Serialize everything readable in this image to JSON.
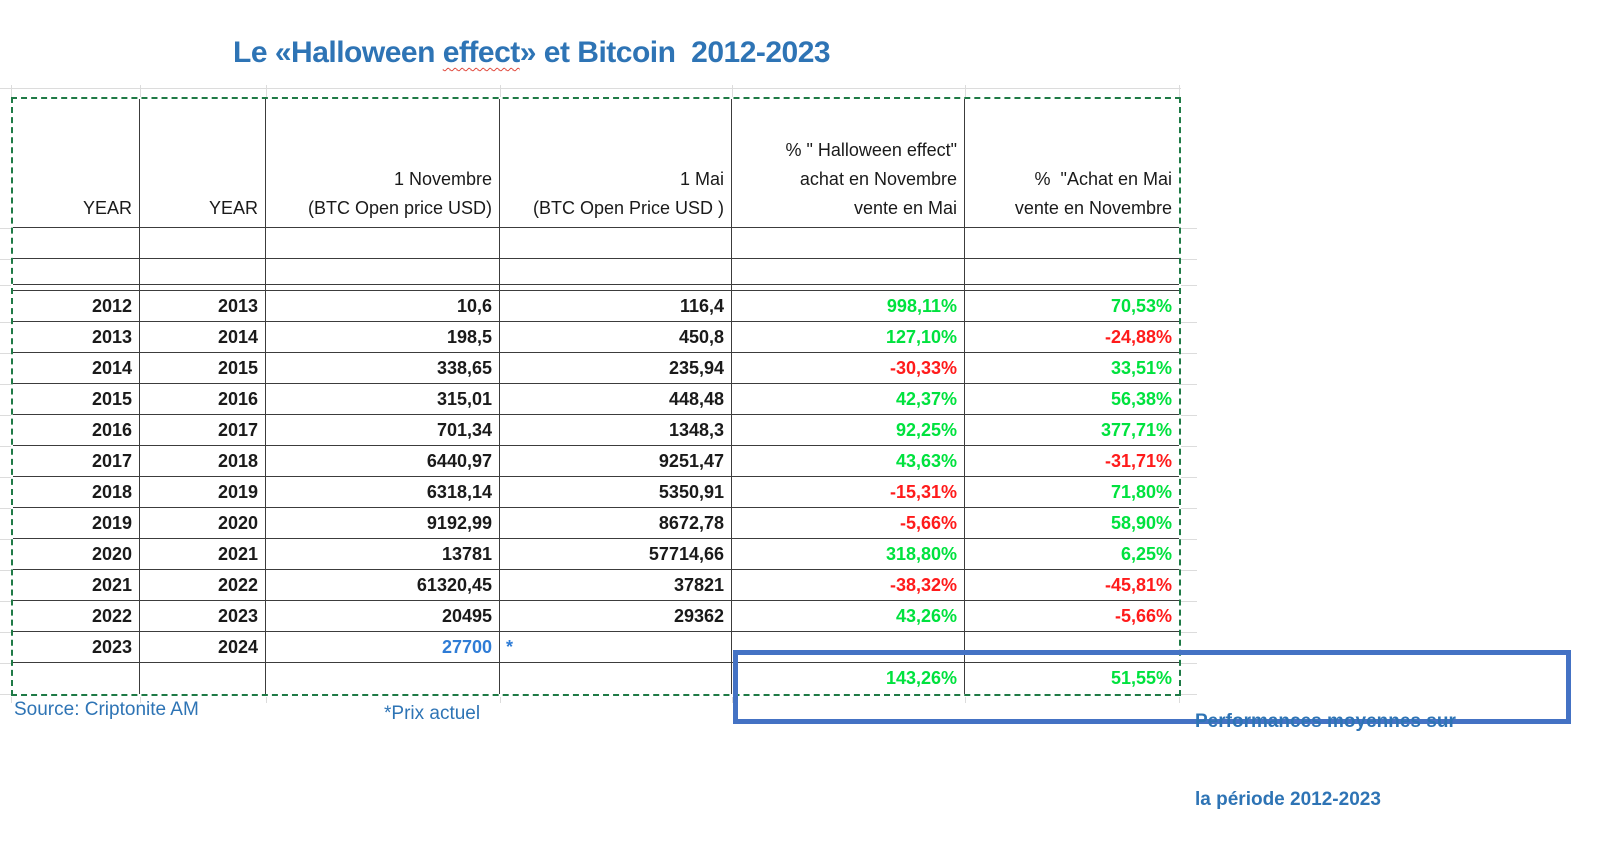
{
  "title": {
    "prefix": "Le «Halloween ",
    "misspelled_word": "effect",
    "suffix": "» et Bitcoin  2012-2023"
  },
  "table": {
    "headers": {
      "year_buy": "YEAR",
      "year_sell": "YEAR",
      "nov_line1": "1 Novembre",
      "nov_line2": "(BTC Open price USD)",
      "may_line1": "1 Mai",
      "may_line2": "(BTC Open Price USD )",
      "halloween_line1": "% \" Halloween effect\"",
      "halloween_line2": "achat en Novembre",
      "halloween_line3": "vente en Mai",
      "inverse_line1": "%  \"Achat en Mai",
      "inverse_line2": "vente en Novembre"
    },
    "rows": [
      {
        "year_buy": "2012",
        "year_sell": "2013",
        "nov_price": "10,6",
        "may_price": "116,4",
        "halloween_pct": "998,11%",
        "halloween_sign": "pos",
        "inverse_pct": "70,53%",
        "inverse_sign": "pos"
      },
      {
        "year_buy": "2013",
        "year_sell": "2014",
        "nov_price": "198,5",
        "may_price": "450,8",
        "halloween_pct": "127,10%",
        "halloween_sign": "pos",
        "inverse_pct": "-24,88%",
        "inverse_sign": "neg"
      },
      {
        "year_buy": "2014",
        "year_sell": "2015",
        "nov_price": "338,65",
        "may_price": "235,94",
        "halloween_pct": "-30,33%",
        "halloween_sign": "neg",
        "inverse_pct": "33,51%",
        "inverse_sign": "pos"
      },
      {
        "year_buy": "2015",
        "year_sell": "2016",
        "nov_price": "315,01",
        "may_price": "448,48",
        "halloween_pct": "42,37%",
        "halloween_sign": "pos",
        "inverse_pct": "56,38%",
        "inverse_sign": "pos"
      },
      {
        "year_buy": "2016",
        "year_sell": "2017",
        "nov_price": "701,34",
        "may_price": "1348,3",
        "halloween_pct": "92,25%",
        "halloween_sign": "pos",
        "inverse_pct": "377,71%",
        "inverse_sign": "pos"
      },
      {
        "year_buy": "2017",
        "year_sell": "2018",
        "nov_price": "6440,97",
        "may_price": "9251,47",
        "halloween_pct": "43,63%",
        "halloween_sign": "pos",
        "inverse_pct": "-31,71%",
        "inverse_sign": "neg"
      },
      {
        "year_buy": "2018",
        "year_sell": "2019",
        "nov_price": "6318,14",
        "may_price": "5350,91",
        "halloween_pct": "-15,31%",
        "halloween_sign": "neg",
        "inverse_pct": "71,80%",
        "inverse_sign": "pos"
      },
      {
        "year_buy": "2019",
        "year_sell": "2020",
        "nov_price": "9192,99",
        "may_price": "8672,78",
        "halloween_pct": "-5,66%",
        "halloween_sign": "neg",
        "inverse_pct": "58,90%",
        "inverse_sign": "pos"
      },
      {
        "year_buy": "2020",
        "year_sell": "2021",
        "nov_price": "13781",
        "may_price": "57714,66",
        "halloween_pct": "318,80%",
        "halloween_sign": "pos",
        "inverse_pct": "6,25%",
        "inverse_sign": "pos"
      },
      {
        "year_buy": "2021",
        "year_sell": "2022",
        "nov_price": "61320,45",
        "may_price": "37821",
        "halloween_pct": "-38,32%",
        "halloween_sign": "neg",
        "inverse_pct": "-45,81%",
        "inverse_sign": "neg"
      },
      {
        "year_buy": "2022",
        "year_sell": "2023",
        "nov_price": "20495",
        "may_price": "29362",
        "halloween_pct": "43,26%",
        "halloween_sign": "pos",
        "inverse_pct": "-5,66%",
        "inverse_sign": "neg"
      },
      {
        "year_buy": "2023",
        "year_sell": "2024",
        "nov_price": "27700",
        "may_price": "*",
        "halloween_pct": "",
        "halloween_sign": "none",
        "inverse_pct": "",
        "inverse_sign": "none"
      }
    ],
    "average_row": {
      "halloween_pct": "143,26%",
      "inverse_pct": "51,55%"
    }
  },
  "annotations": {
    "source": "Source: Criptonite AM",
    "price_note": "*Prix actuel",
    "avg_box_line1": "Performances moyennes sur",
    "avg_box_line2": "la période 2012-2023"
  },
  "colors": {
    "positive_green": "#00e23e",
    "negative_red": "#ff1b1b",
    "accent_blue": "#2e74b5",
    "current_price_blue": "#2e7cd6",
    "box_border_blue": "#4472c4",
    "selection_border_green": "#1f7a46"
  }
}
